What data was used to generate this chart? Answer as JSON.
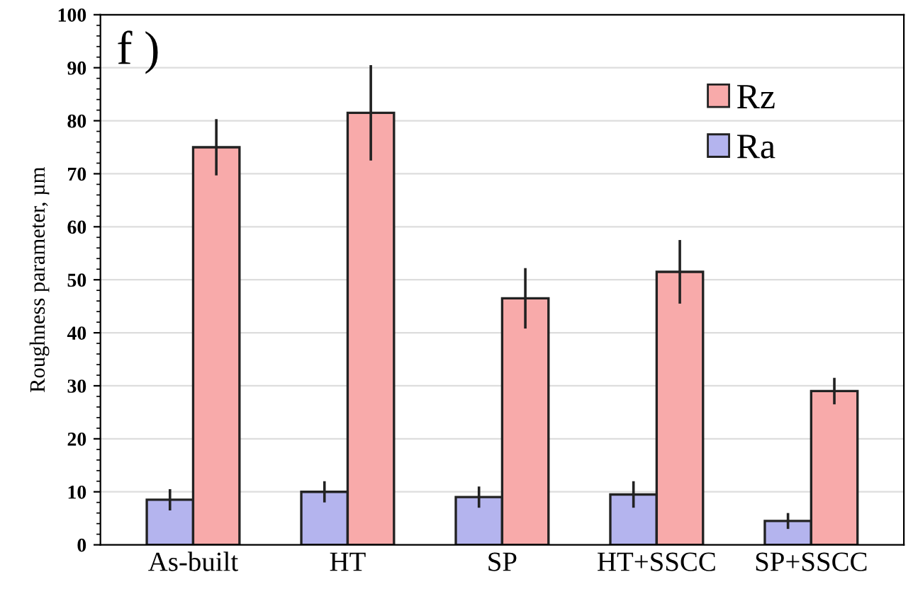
{
  "chart_data": {
    "type": "bar",
    "ylabel": "Roughness parameter, µm",
    "categories": [
      "As-built",
      "HT",
      "SP",
      "HT+SSCC",
      "SP+SSCC"
    ],
    "series": [
      {
        "name": "Ra",
        "color": "#b4b4ee",
        "values": [
          8.5,
          10,
          9,
          9.5,
          4.5
        ],
        "errors": [
          2,
          2,
          2,
          2.5,
          1.5
        ]
      },
      {
        "name": "Rz",
        "color": "#f8aaaa",
        "values": [
          75,
          81.5,
          46.5,
          51.5,
          29
        ],
        "errors": [
          5.3,
          9,
          5.7,
          6,
          2.5
        ]
      }
    ],
    "ylim": [
      0,
      100
    ],
    "yticks": [
      0,
      10,
      20,
      30,
      40,
      50,
      60,
      70,
      80,
      90,
      100
    ],
    "grid": "y",
    "legend": "top right",
    "annotations": [
      "f )"
    ]
  }
}
